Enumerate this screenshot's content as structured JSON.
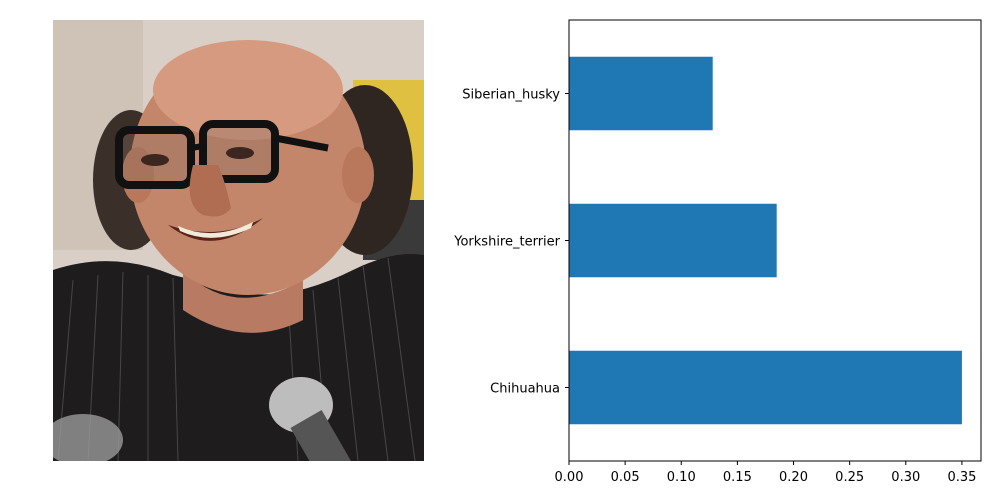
{
  "photo": {
    "subject": "photo of a smiling bald man with dark thick-framed glasses and a striped dark shirt, microphone in the foreground"
  },
  "chart_data": {
    "type": "bar",
    "orientation": "horizontal",
    "categories": [
      "Chihuahua",
      "Yorkshire_terrier",
      "Siberian_husky"
    ],
    "values": [
      0.35,
      0.185,
      0.128
    ],
    "xlim": [
      0,
      0.367
    ],
    "x_ticks": [
      "0.00",
      "0.05",
      "0.10",
      "0.15",
      "0.20",
      "0.25",
      "0.30",
      "0.35"
    ],
    "bar_color": "#1f77b4",
    "grid": false,
    "legend": "none",
    "title": "",
    "xlabel": "",
    "ylabel": ""
  }
}
